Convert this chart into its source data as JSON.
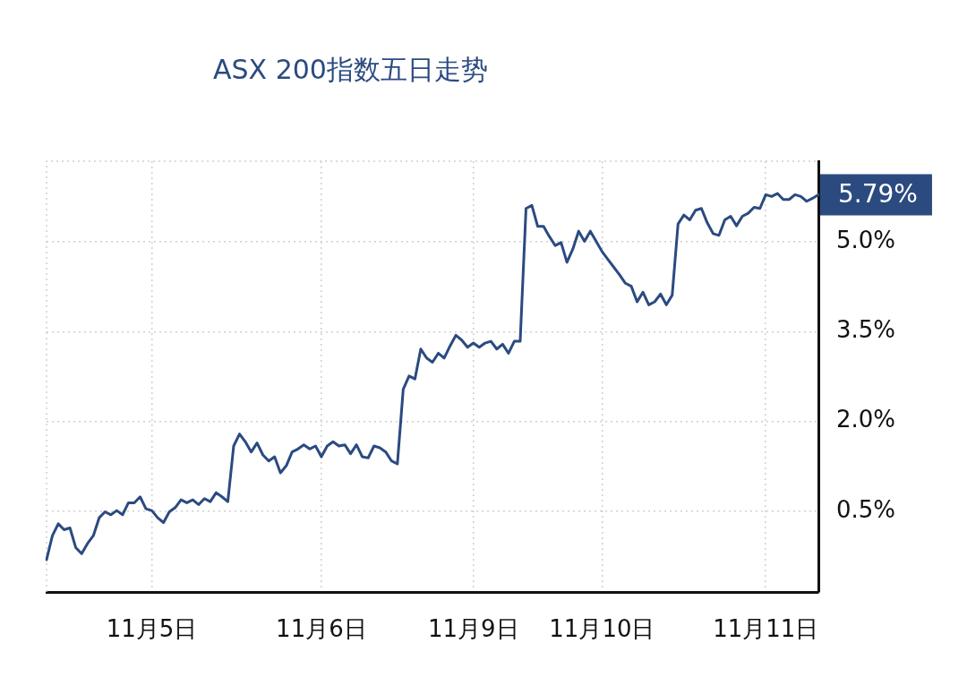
{
  "chart_data": {
    "type": "line",
    "title": "ASX 200指数五日走势",
    "categories": [
      null,
      null,
      null,
      null,
      null,
      null,
      null,
      null,
      null,
      null,
      null,
      null,
      null,
      null,
      null,
      null,
      null,
      null,
      "11月5日",
      null,
      null,
      null,
      null,
      null,
      null,
      null,
      null,
      null,
      null,
      null,
      null,
      null,
      null,
      null,
      null,
      null,
      null,
      null,
      null,
      null,
      null,
      null,
      null,
      null,
      null,
      null,
      null,
      "11月6日",
      null,
      null,
      null,
      null,
      null,
      null,
      null,
      null,
      null,
      null,
      null,
      null,
      null,
      null,
      null,
      null,
      null,
      null,
      null,
      null,
      null,
      null,
      null,
      null,
      null,
      "11月9日",
      null,
      null,
      null,
      null,
      null,
      null,
      null,
      null,
      null,
      null,
      null,
      null,
      null,
      null,
      null,
      null,
      null,
      null,
      null,
      null,
      null,
      "11月10日",
      null,
      null,
      null,
      null,
      null,
      null,
      null,
      null,
      null,
      null,
      null,
      null,
      null,
      null,
      null,
      null,
      null,
      null,
      null,
      null,
      null,
      null,
      null,
      null,
      null,
      null,
      null,
      "11月11日",
      null,
      null,
      null,
      null,
      null,
      null,
      null,
      null,
      null
    ],
    "ylim": [
      -0.85,
      6.35
    ],
    "yticks": [
      {
        "value": 0.5,
        "label": "0.5%"
      },
      {
        "value": 2.0,
        "label": "2.0%"
      },
      {
        "value": 3.5,
        "label": "3.5%"
      },
      {
        "value": 5.0,
        "label": "5.0%"
      }
    ],
    "grid": true,
    "marker": "none",
    "line_style": "solid",
    "annotations": [
      "5.79%"
    ],
    "series": [
      {
        "color": "#2b4a80",
        "values": [
          -0.31,
          0.09,
          0.29,
          0.19,
          0.22,
          -0.11,
          -0.21,
          -0.04,
          0.09,
          0.39,
          0.49,
          0.44,
          0.51,
          0.44,
          0.64,
          0.64,
          0.74,
          0.54,
          0.51,
          0.39,
          0.31,
          0.49,
          0.56,
          0.69,
          0.64,
          0.69,
          0.61,
          0.71,
          0.66,
          0.81,
          0.74,
          0.66,
          1.59,
          1.79,
          1.66,
          1.49,
          1.64,
          1.44,
          1.34,
          1.41,
          1.14,
          1.26,
          1.49,
          1.54,
          1.61,
          1.54,
          1.59,
          1.41,
          1.59,
          1.66,
          1.59,
          1.61,
          1.46,
          1.61,
          1.41,
          1.39,
          1.59,
          1.56,
          1.49,
          1.34,
          1.29,
          2.54,
          2.76,
          2.71,
          3.21,
          3.06,
          2.99,
          3.14,
          3.06,
          3.26,
          3.44,
          3.36,
          3.24,
          3.31,
          3.24,
          3.31,
          3.34,
          3.21,
          3.29,
          3.14,
          3.34,
          3.34,
          5.56,
          5.61,
          5.26,
          5.26,
          5.09,
          4.94,
          4.99,
          4.66,
          4.88,
          5.18,
          5.01,
          5.18,
          5.01,
          4.84,
          4.71,
          4.58,
          4.45,
          4.31,
          4.26,
          4.0,
          4.16,
          3.95,
          4.0,
          4.13,
          3.95,
          4.11,
          5.3,
          5.45,
          5.37,
          5.53,
          5.56,
          5.32,
          5.14,
          5.11,
          5.37,
          5.43,
          5.27,
          5.43,
          5.48,
          5.58,
          5.56,
          5.79,
          5.76,
          5.81,
          5.71,
          5.71,
          5.79,
          5.76,
          5.68,
          5.73,
          5.79
        ]
      }
    ]
  }
}
